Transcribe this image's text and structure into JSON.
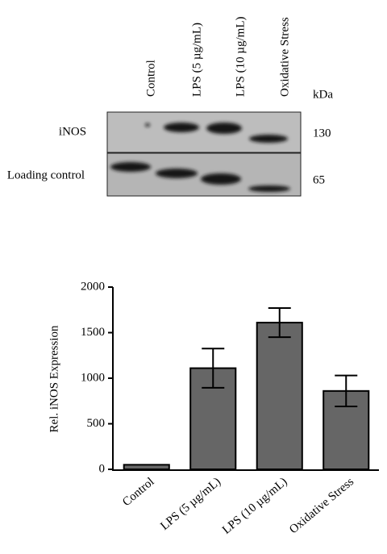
{
  "blot": {
    "lanes": [
      "Control",
      "LPS (5 µg/mL)",
      "LPS (10 µg/mL)",
      "Oxidative Stress"
    ],
    "kda_header": "kDa",
    "rows": [
      {
        "label": "iNOS",
        "kda": "130"
      },
      {
        "label": "Loading control",
        "kda": "65"
      }
    ]
  },
  "chart_data": {
    "type": "bar",
    "ylabel": "Rel. iNOS Expression",
    "categories": [
      "Control",
      "LPS (5 µg/mL)",
      "LPS (10 µg/mL)",
      "Oxidative Stress"
    ],
    "values": [
      50,
      1110,
      1610,
      860
    ],
    "errors": [
      null,
      215,
      160,
      170
    ],
    "color": "#666666",
    "ylim": [
      0,
      2000
    ],
    "yticks": [
      0,
      500,
      1000,
      1500,
      2000
    ]
  }
}
